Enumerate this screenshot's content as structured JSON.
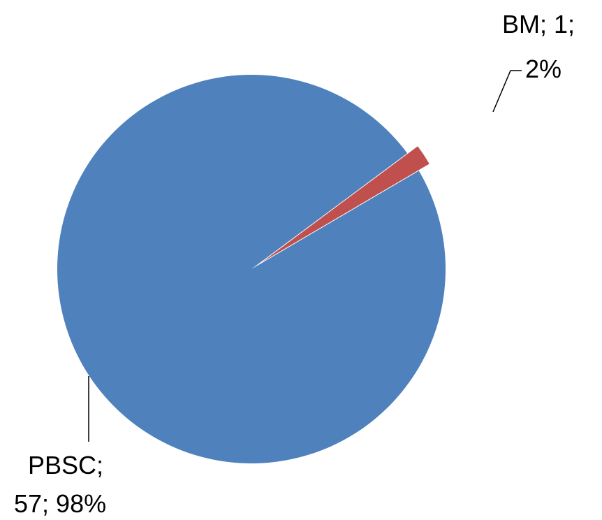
{
  "chart_data": {
    "type": "pie",
    "title": "",
    "slices": [
      {
        "label": "PBSC",
        "value": 57,
        "percent": 98,
        "color": "#4F81BD",
        "label_lines": [
          "PBSC;",
          "57; 98%"
        ]
      },
      {
        "label": "BM",
        "value": 1,
        "percent": 2,
        "color": "#C0504D",
        "exploded": true,
        "label_lines": [
          "BM; 1;",
          "2%"
        ]
      }
    ],
    "legend": "none",
    "data_labels": "category; value; percent"
  }
}
